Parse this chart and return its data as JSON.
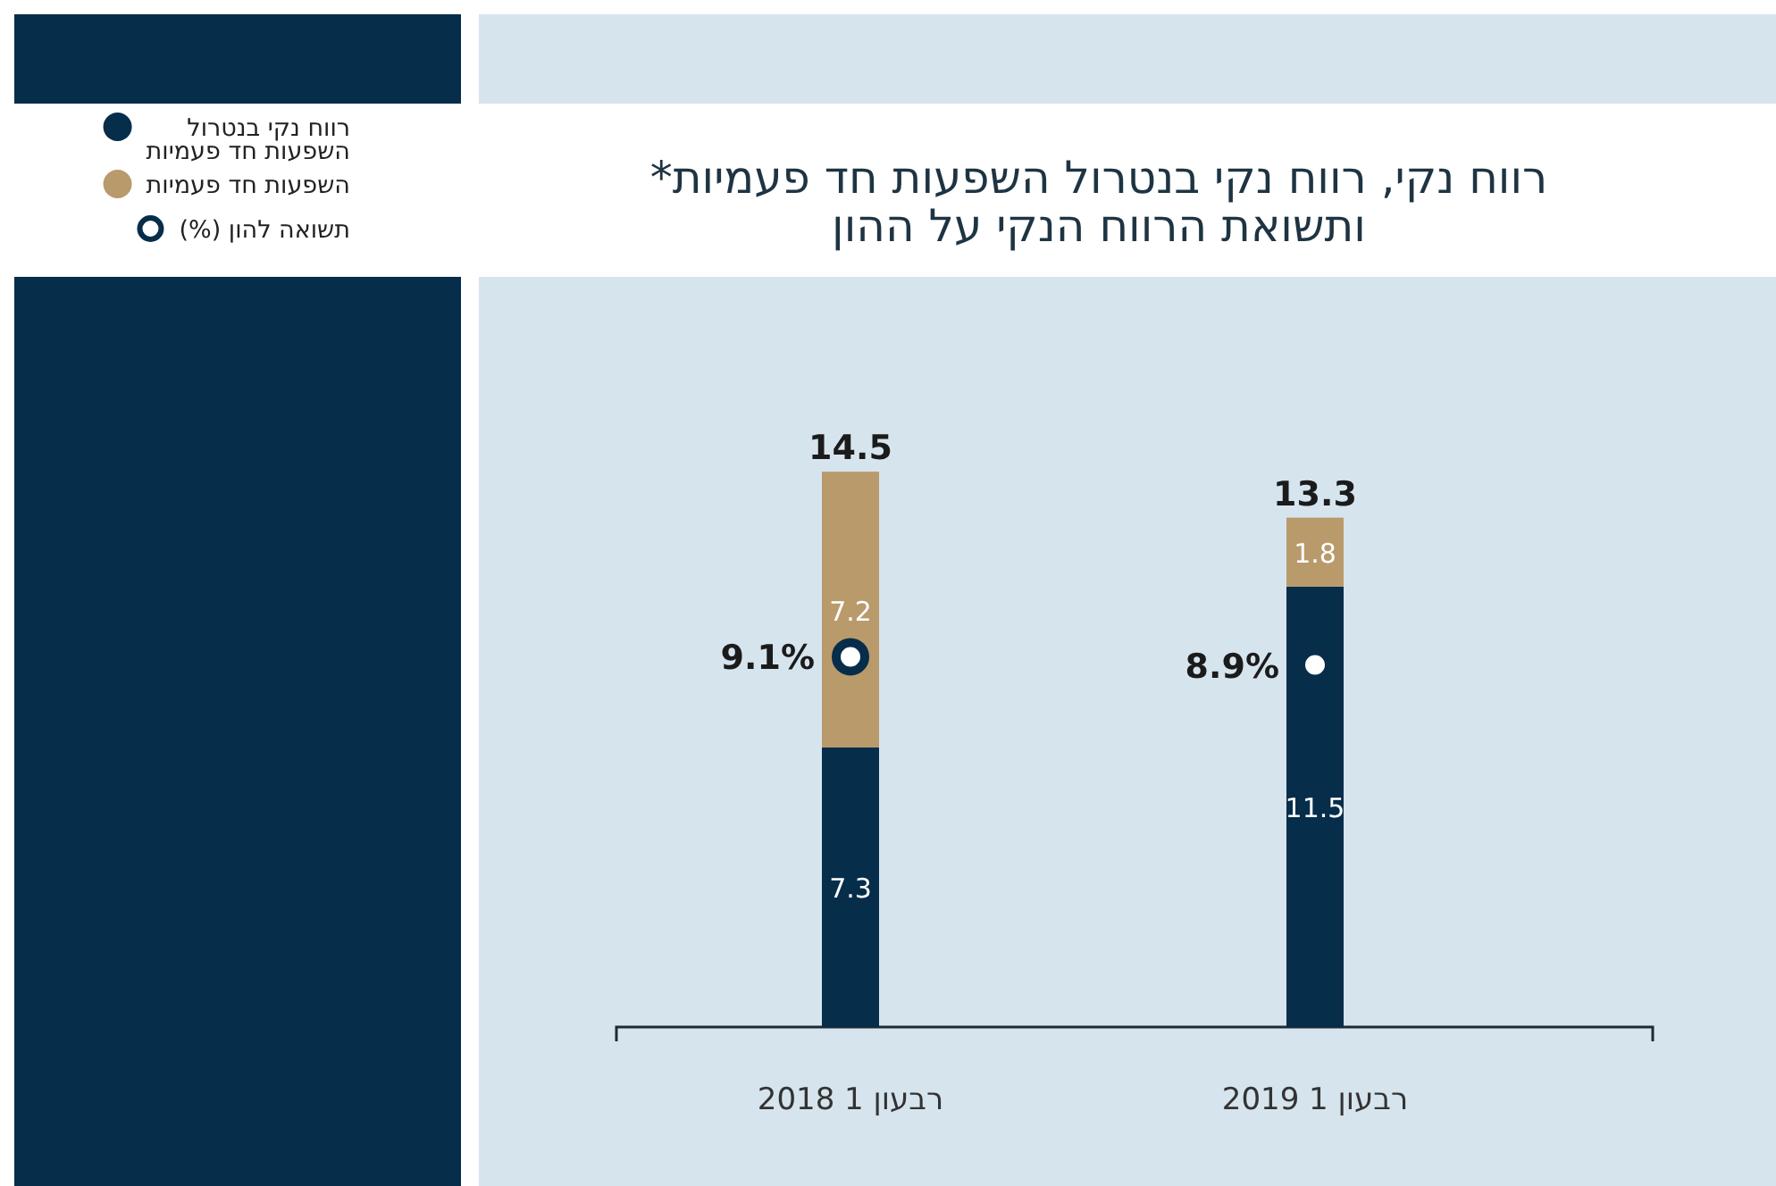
{
  "chart_data": {
    "type": "bar",
    "title": "רווח נקי, רווח נקי בנטרול השפעות חד פעמיות* ותשואת הרווח הנקי על ההון",
    "categories": [
      "רבעון 1 2018",
      "רבעון 1 2019"
    ],
    "stacked": true,
    "data_labels": true,
    "totals": [
      "14.5",
      "13.3"
    ],
    "legend": "left",
    "grid": false,
    "series": [
      {
        "name": "רווח נקי בנטרול השפעות חד פעמיות",
        "color": "#062d4a",
        "values": [
          7.3,
          11.5
        ]
      },
      {
        "name": "השפעות חד פעמיות",
        "color": "#b99a6b",
        "values": [
          7.2,
          1.8
        ]
      },
      {
        "name": "תשואה להון (%)",
        "type": "scatter",
        "axis": "y2",
        "color": "#ffffff",
        "values": [
          9.1,
          8.9
        ],
        "value_labels": [
          "9.1%",
          "8.9%"
        ]
      }
    ]
  }
}
